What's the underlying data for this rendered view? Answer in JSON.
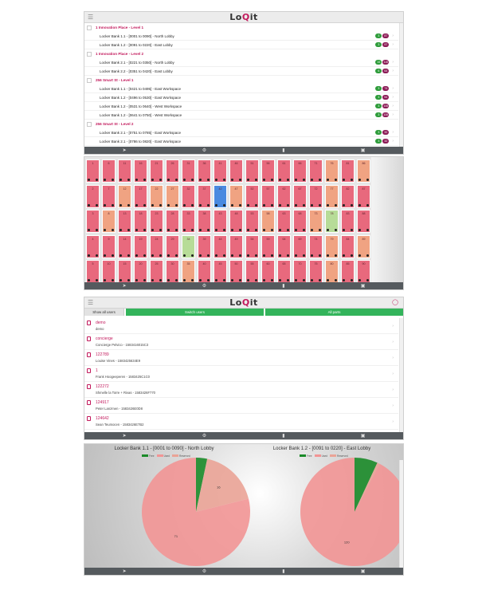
{
  "app": {
    "logo_left": "Lo",
    "logo_mid": "Q",
    "logo_right": "it"
  },
  "screen1": {
    "rows": [
      {
        "type": "site",
        "label": "1 Innovation Place - Level 1"
      },
      {
        "type": "bank",
        "label": "Locker Bank 1.1 - [0001 to 0090] - North Lobby",
        "g": "3",
        "m": "87"
      },
      {
        "type": "bank",
        "label": "Locker Bank 1.2 - [0091 to 0220] - East Lobby",
        "g": "3",
        "m": "97"
      },
      {
        "type": "site",
        "label": "1 Innovation Place - Level 2"
      },
      {
        "type": "bank",
        "label": "Locker Bank 2.1 - [0221 to 0350] - North Lobby",
        "g": "15",
        "m": "115"
      },
      {
        "type": "bank",
        "label": "Locker Bank 2.2 - [0351 to 0420] - East Lobby",
        "g": "6",
        "m": "64"
      },
      {
        "type": "site",
        "label": "256 Smart St - Level 1"
      },
      {
        "type": "bank",
        "label": "Locker Bank 1.1 - [0421 to 0495] - East Workspace",
        "g": "3",
        "m": "74"
      },
      {
        "type": "bank",
        "label": "Locker Bank 1.2 - [0496 to 0530] - East Workspace",
        "g": "3",
        "m": "54"
      },
      {
        "type": "bank",
        "label": "Locker Bank 1.2 - [0531 to 0640] - West Workspace",
        "g": "3",
        "m": "106"
      },
      {
        "type": "bank",
        "label": "Locker Bank 1.2 - [0641 to 0750] - West Workspace",
        "g": "3",
        "m": "106"
      },
      {
        "type": "site",
        "label": "256 Smart St - Level 2"
      },
      {
        "type": "bank",
        "label": "Locker Bank 2.1 - [0751 to 0785] - East Workspace",
        "g": "3",
        "m": "32"
      },
      {
        "type": "bank",
        "label": "Locker Bank 2.1 - [0786 to 0820] - East Workspace",
        "g": "3",
        "m": "32"
      },
      {
        "type": "bank",
        "label": "Locker Bank 2.2 - [0821 to 0930] - West Workspace",
        "g": "3",
        "m": "107"
      }
    ]
  },
  "screen2": {
    "colors": {
      "occupied": "#e8697d",
      "reserved": "#f0a382",
      "free": "#b7dc98",
      "selected": "#4a8ae0"
    },
    "rows": [
      [
        [
          "1",
          "o"
        ],
        [
          "6",
          "o"
        ],
        [
          "11",
          "o"
        ],
        [
          "16",
          "o"
        ],
        [
          "21",
          "o"
        ],
        [
          "26",
          "o"
        ],
        [
          "31",
          "o"
        ],
        [
          "36",
          "o"
        ],
        [
          "41",
          "o"
        ],
        [
          "46",
          "o"
        ],
        [
          "51",
          "o"
        ],
        [
          "56",
          "o"
        ],
        [
          "61",
          "o"
        ],
        [
          "66",
          "o"
        ],
        [
          "71",
          "o"
        ],
        [
          "76",
          "r"
        ],
        [
          "81",
          "o"
        ],
        [
          "86",
          "r"
        ]
      ],
      [
        [
          "2",
          "o"
        ],
        [
          "7",
          "o"
        ],
        [
          "12",
          "r"
        ],
        [
          "17",
          "o"
        ],
        [
          "22",
          "r"
        ],
        [
          "27",
          "r"
        ],
        [
          "32",
          "o"
        ],
        [
          "37",
          "o"
        ],
        [
          "42",
          "s"
        ],
        [
          "47",
          "r"
        ],
        [
          "52",
          "o"
        ],
        [
          "57",
          "o"
        ],
        [
          "62",
          "o"
        ],
        [
          "67",
          "o"
        ],
        [
          "72",
          "o"
        ],
        [
          "77",
          "r"
        ],
        [
          "82",
          "o"
        ],
        [
          "87",
          "o"
        ]
      ],
      [
        [
          "3",
          "o"
        ],
        [
          "8",
          "r"
        ],
        [
          "13",
          "o"
        ],
        [
          "18",
          "o"
        ],
        [
          "23",
          "o"
        ],
        [
          "28",
          "o"
        ],
        [
          "33",
          "o"
        ],
        [
          "38",
          "o"
        ],
        [
          "43",
          "o"
        ],
        [
          "48",
          "o"
        ],
        [
          "53",
          "o"
        ],
        [
          "58",
          "r"
        ],
        [
          "63",
          "o"
        ],
        [
          "68",
          "o"
        ],
        [
          "73",
          "r"
        ],
        [
          "78",
          "f"
        ],
        [
          "83",
          "o"
        ],
        [
          "88",
          "o"
        ]
      ],
      [
        [
          "4",
          "o"
        ],
        [
          "9",
          "o"
        ],
        [
          "14",
          "o"
        ],
        [
          "19",
          "o"
        ],
        [
          "24",
          "o"
        ],
        [
          "29",
          "o"
        ],
        [
          "34",
          "f"
        ],
        [
          "39",
          "o"
        ],
        [
          "44",
          "o"
        ],
        [
          "49",
          "o"
        ],
        [
          "54",
          "o"
        ],
        [
          "59",
          "o"
        ],
        [
          "64",
          "o"
        ],
        [
          "69",
          "o"
        ],
        [
          "74",
          "o"
        ],
        [
          "79",
          "r"
        ],
        [
          "84",
          "o"
        ],
        [
          "89",
          "r"
        ]
      ],
      [
        [
          "5",
          "o"
        ],
        [
          "10",
          "o"
        ],
        [
          "15",
          "o"
        ],
        [
          "20",
          "o"
        ],
        [
          "25",
          "o"
        ],
        [
          "30",
          "o"
        ],
        [
          "35",
          "r"
        ],
        [
          "40",
          "o"
        ],
        [
          "45",
          "o"
        ],
        [
          "50",
          "o"
        ],
        [
          "55",
          "o"
        ],
        [
          "60",
          "o"
        ],
        [
          "65",
          "o"
        ],
        [
          "70",
          "o"
        ],
        [
          "75",
          "o"
        ],
        [
          "80",
          "r"
        ],
        [
          "85",
          "o"
        ],
        [
          "90",
          "o"
        ]
      ]
    ]
  },
  "screen3": {
    "tabs": {
      "show": "Show all users",
      "switch": "Switch users",
      "all": "All parts"
    },
    "users": [
      {
        "name": "demo",
        "desc": "demo"
      },
      {
        "name": "concierge",
        "desc": "Concierge Pelvico - 1583416015C3"
      },
      {
        "name": "122789",
        "desc": "Louise Vines - 1583425634E9"
      },
      {
        "name": "1",
        "desc": "Frank Hoogeeperen - 1583425C1C0"
      },
      {
        "name": "122272",
        "desc": "Shmelle la Torre + Rivas - 1583426F770"
      },
      {
        "name": "124917",
        "desc": "Peter Lanzmen - 1583426E0D8"
      },
      {
        "name": "124642",
        "desc": "Sean Teumocen - 1583426E7B2"
      }
    ]
  },
  "screen4": {
    "legend": {
      "free": "Free",
      "occupied": "Used",
      "reserved": "Reserved"
    },
    "chart_data": [
      {
        "type": "pie",
        "title": "Locker Bank 1.1 - [0001 to 0090] - North Lobby",
        "series": [
          {
            "values": [
              3,
              16,
              71
            ]
          }
        ],
        "labels": [
          "Free",
          "Reserved",
          "Used"
        ],
        "data_labels": [
          "",
          "16",
          "71"
        ],
        "colors": [
          "#1a8a28",
          "#eaa396",
          "#f29595"
        ]
      },
      {
        "type": "pie",
        "title": "Locker Bank 1.2 - [0091 to 0220] - East Lobby",
        "series": [
          {
            "values": [
              9,
              1,
              120
            ]
          }
        ],
        "labels": [
          "Free",
          "Reserved",
          "Used"
        ],
        "data_labels": [
          "",
          "",
          "120"
        ],
        "colors": [
          "#1a8a28",
          "#eaa396",
          "#f29595"
        ]
      }
    ]
  }
}
